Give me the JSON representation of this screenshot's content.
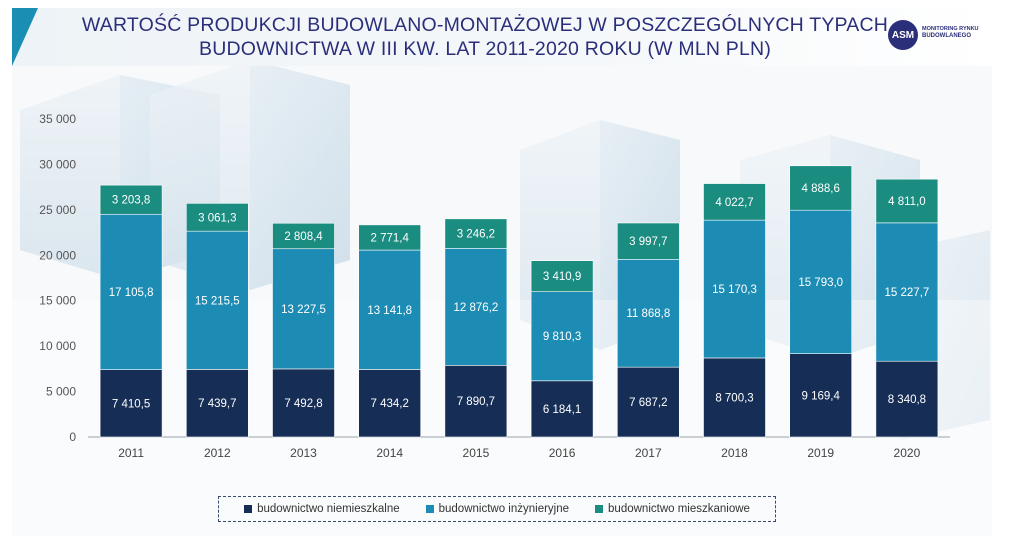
{
  "header": {
    "title_line1": "WARTOŚĆ PRODUKCJI BUDOWLANO-MONTAŻOWEJ W POSZCZEGÓLNYCH TYPACH",
    "title_line2": "BUDOWNICTWA W III KW. LAT 2011-2020 ROKU (W MLN PLN)",
    "logo_abbr": "ASM",
    "logo_line1": "MONITORING RYNKU",
    "logo_line2": "BUDOWLANEGO"
  },
  "colors": {
    "niemieszkalne": "#162d56",
    "inzynieryjne": "#1d8cb5",
    "mieszkaniowe": "#1a8c80"
  },
  "chart_data": {
    "type": "bar",
    "stacked": true,
    "categories": [
      "2011",
      "2012",
      "2013",
      "2014",
      "2015",
      "2016",
      "2017",
      "2018",
      "2019",
      "2020"
    ],
    "series": [
      {
        "name": "budownictwo niemieszkalne",
        "values": [
          7410.5,
          7439.7,
          7492.8,
          7434.2,
          7890.7,
          6184.1,
          7687.2,
          8700.3,
          9169.4,
          8340.8
        ],
        "labels": [
          "7 410,5",
          "7 439,7",
          "7 492,8",
          "7 434,2",
          "7 890,7",
          "6 184,1",
          "7 687,2",
          "8 700,3",
          "9 169,4",
          "8 340,8"
        ]
      },
      {
        "name": "budownictwo inżynieryjne",
        "values": [
          17105.8,
          15215.5,
          13227.5,
          13141.8,
          12876.2,
          9810.3,
          11868.8,
          15170.3,
          15793.0,
          15227.7
        ],
        "labels": [
          "17 105,8",
          "15 215,5",
          "13 227,5",
          "13 141,8",
          "12 876,2",
          "9 810,3",
          "11 868,8",
          "15 170,3",
          "15 793,0",
          "15 227,7"
        ]
      },
      {
        "name": "budownictwo mieszkaniowe",
        "values": [
          3203.8,
          3061.3,
          2808.4,
          2771.4,
          3246.2,
          3410.9,
          3997.7,
          4022.7,
          4888.6,
          4811.0
        ],
        "labels": [
          "3 203,8",
          "3 061,3",
          "2 808,4",
          "2 771,4",
          "3 246,2",
          "3 410,9",
          "3 997,7",
          "4 022,7",
          "4 888,6",
          "4 811,0"
        ]
      }
    ],
    "ylim": [
      0,
      35000
    ],
    "yticks": [
      0,
      5000,
      10000,
      15000,
      20000,
      25000,
      30000,
      35000
    ],
    "ytick_labels": [
      "0",
      "5 000",
      "10 000",
      "15 000",
      "20 000",
      "25 000",
      "30 000",
      "35 000"
    ],
    "legend_position": "bottom"
  }
}
